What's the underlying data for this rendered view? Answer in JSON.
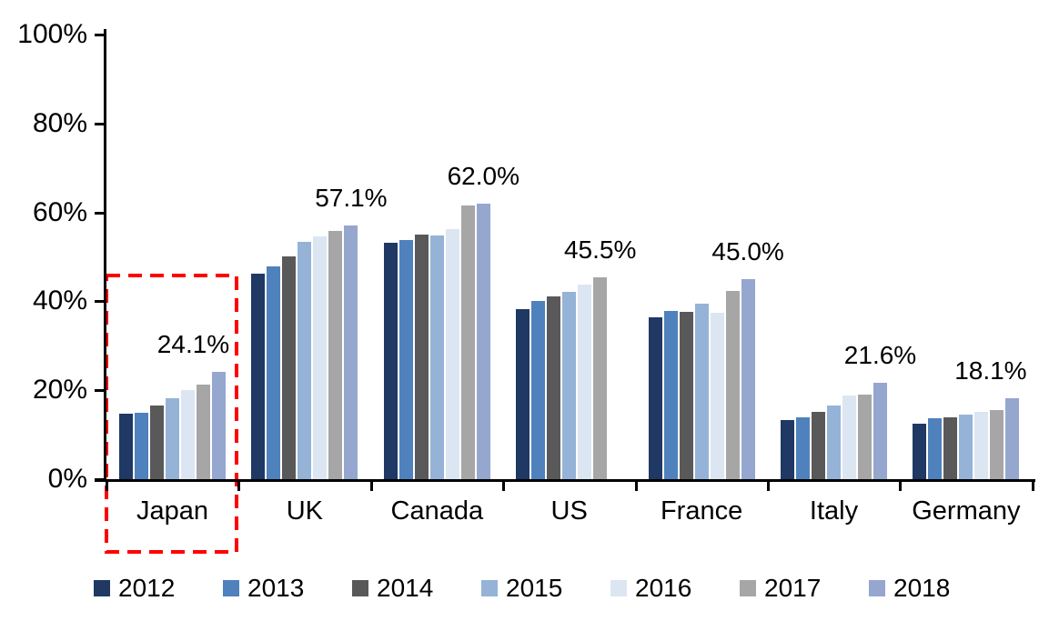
{
  "chart_data": {
    "type": "bar",
    "title": "",
    "categories": [
      "Japan",
      "UK",
      "Canada",
      "US",
      "France",
      "Italy",
      "Germany"
    ],
    "series": [
      {
        "name": "2012",
        "color": "#1F3864",
        "values": [
          14.8,
          46.3,
          53.2,
          38.3,
          36.5,
          13.2,
          12.5
        ]
      },
      {
        "name": "2013",
        "color": "#4F81BD",
        "values": [
          15.0,
          47.9,
          53.7,
          40.1,
          37.8,
          13.9,
          13.8
        ]
      },
      {
        "name": "2014",
        "color": "#595959",
        "values": [
          16.5,
          50.1,
          55.1,
          41.2,
          37.7,
          15.2,
          14.0
        ]
      },
      {
        "name": "2015",
        "color": "#95B3D7",
        "values": [
          18.2,
          53.4,
          54.8,
          42.2,
          39.4,
          16.6,
          14.5
        ]
      },
      {
        "name": "2016",
        "color": "#DCE6F2",
        "values": [
          20.0,
          54.7,
          56.3,
          43.7,
          37.4,
          18.8,
          15.1
        ]
      },
      {
        "name": "2017",
        "color": "#A6A6A6",
        "values": [
          21.2,
          55.8,
          61.5,
          45.5,
          42.3,
          19.0,
          15.6
        ]
      },
      {
        "name": "2018",
        "color": "#95A6CF",
        "values": [
          24.1,
          57.1,
          62.0,
          null,
          45.0,
          21.6,
          18.1
        ]
      }
    ],
    "data_labels": [
      "24.1%",
      "57.1%",
      "62.0%",
      "45.5%",
      "45.0%",
      "21.6%",
      "18.1%"
    ],
    "y_ticks": [
      "0%",
      "20%",
      "40%",
      "60%",
      "80%",
      "100%"
    ],
    "ylim": [
      0,
      100
    ],
    "xlabel": "",
    "ylabel": "",
    "grid": false,
    "legend_position": "bottom",
    "legend_entries": [
      "2012",
      "2013",
      "2014",
      "2015",
      "2016",
      "2017",
      "2018"
    ],
    "highlight": {
      "category": "Japan",
      "style": "red-dashed-box",
      "color": "#FF0000"
    }
  }
}
